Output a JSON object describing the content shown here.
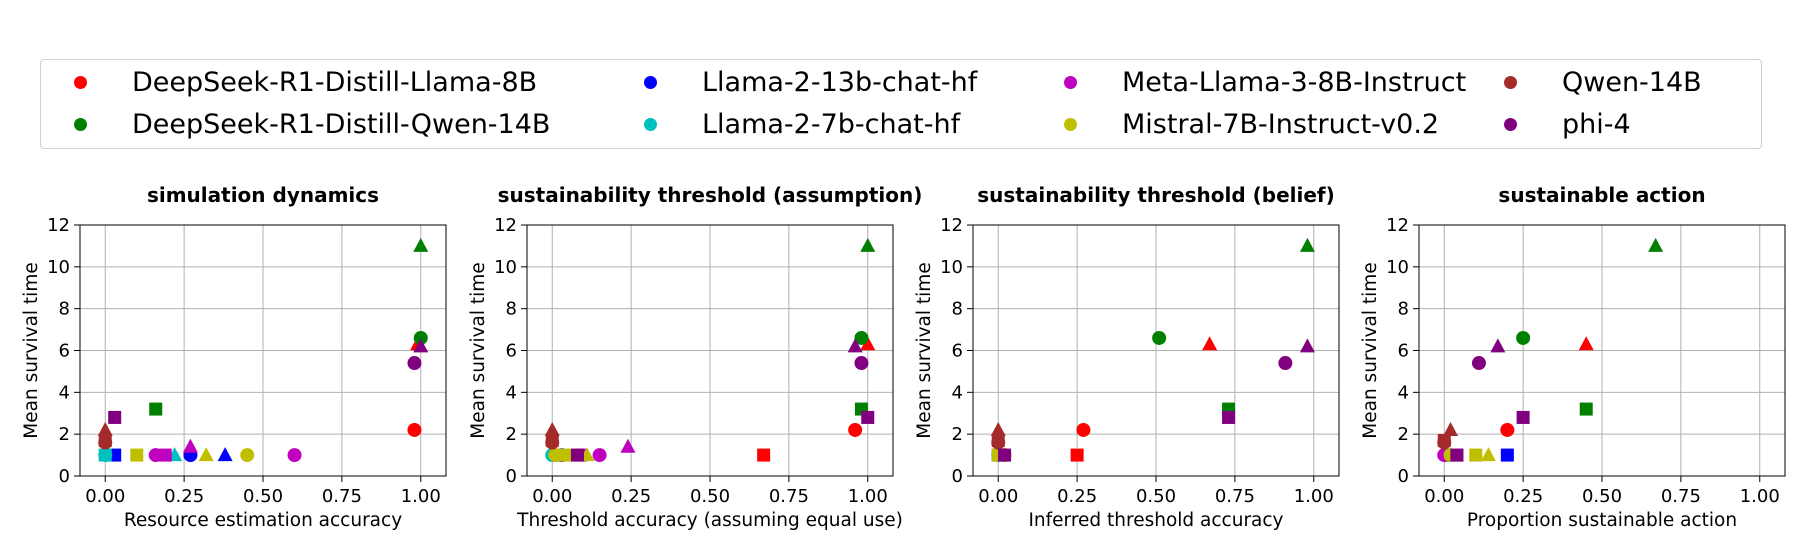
{
  "legend": {
    "placement": "top",
    "entries": [
      {
        "name": "DeepSeek-R1-Distill-Llama-8B",
        "color": "#ff0000"
      },
      {
        "name": "DeepSeek-R1-Distill-Qwen-14B",
        "color": "#008000"
      },
      {
        "name": "Llama-2-13b-chat-hf",
        "color": "#0000ff"
      },
      {
        "name": "Llama-2-7b-chat-hf",
        "color": "#00bfbf"
      },
      {
        "name": "Meta-Llama-3-8B-Instruct",
        "color": "#bf00bf"
      },
      {
        "name": "Mistral-7B-Instruct-v0.2",
        "color": "#bfbf00"
      },
      {
        "name": "Qwen-14B",
        "color": "#a52a2a"
      },
      {
        "name": "phi-4",
        "color": "#800080"
      }
    ]
  },
  "chart_data": [
    {
      "type": "scatter",
      "title": "simulation dynamics",
      "xlabel": "Resource estimation accuracy",
      "ylabel": "Mean survival time",
      "xlim": [
        -0.08,
        1.08
      ],
      "ylim": [
        0,
        12
      ],
      "xticks": [
        "0.00",
        "0.25",
        "0.50",
        "0.75",
        "1.00"
      ],
      "yticks": [
        "0",
        "2",
        "4",
        "6",
        "8",
        "10",
        "12"
      ],
      "grid": true,
      "points": [
        {
          "model": "DeepSeek-R1-Distill-Llama-8B",
          "marker": "circle",
          "x": 0.98,
          "y": 2.2
        },
        {
          "model": "DeepSeek-R1-Distill-Llama-8B",
          "marker": "triangle",
          "x": 0.99,
          "y": 6.3
        },
        {
          "model": "DeepSeek-R1-Distill-Qwen-14B",
          "marker": "square",
          "x": 0.16,
          "y": 3.2
        },
        {
          "model": "DeepSeek-R1-Distill-Qwen-14B",
          "marker": "triangle",
          "x": 1.0,
          "y": 11.0
        },
        {
          "model": "DeepSeek-R1-Distill-Qwen-14B",
          "marker": "circle",
          "x": 1.0,
          "y": 6.6
        },
        {
          "model": "Llama-2-13b-chat-hf",
          "marker": "square",
          "x": 0.03,
          "y": 1.0
        },
        {
          "model": "Llama-2-13b-chat-hf",
          "marker": "circle",
          "x": 0.27,
          "y": 1.0
        },
        {
          "model": "Llama-2-13b-chat-hf",
          "marker": "triangle",
          "x": 0.38,
          "y": 1.0
        },
        {
          "model": "Llama-2-7b-chat-hf",
          "marker": "circle",
          "x": 0.0,
          "y": 1.0
        },
        {
          "model": "Llama-2-7b-chat-hf",
          "marker": "square",
          "x": 0.0,
          "y": 1.0
        },
        {
          "model": "Llama-2-7b-chat-hf",
          "marker": "triangle",
          "x": 0.22,
          "y": 1.0
        },
        {
          "model": "Meta-Llama-3-8B-Instruct",
          "marker": "circle",
          "x": 0.16,
          "y": 1.0
        },
        {
          "model": "Meta-Llama-3-8B-Instruct",
          "marker": "square",
          "x": 0.19,
          "y": 1.0
        },
        {
          "model": "Meta-Llama-3-8B-Instruct",
          "marker": "triangle",
          "x": 0.27,
          "y": 1.4
        },
        {
          "model": "Meta-Llama-3-8B-Instruct",
          "marker": "circle",
          "x": 0.6,
          "y": 1.0
        },
        {
          "model": "Mistral-7B-Instruct-v0.2",
          "marker": "square",
          "x": 0.1,
          "y": 1.0
        },
        {
          "model": "Mistral-7B-Instruct-v0.2",
          "marker": "triangle",
          "x": 0.32,
          "y": 1.0
        },
        {
          "model": "Mistral-7B-Instruct-v0.2",
          "marker": "circle",
          "x": 0.45,
          "y": 1.0
        },
        {
          "model": "Qwen-14B",
          "marker": "circle",
          "x": 0.0,
          "y": 1.6
        },
        {
          "model": "Qwen-14B",
          "marker": "square",
          "x": 0.0,
          "y": 1.7
        },
        {
          "model": "Qwen-14B",
          "marker": "triangle",
          "x": 0.0,
          "y": 2.2
        },
        {
          "model": "phi-4",
          "marker": "square",
          "x": 0.03,
          "y": 2.8
        },
        {
          "model": "phi-4",
          "marker": "circle",
          "x": 0.98,
          "y": 5.4
        },
        {
          "model": "phi-4",
          "marker": "triangle",
          "x": 1.0,
          "y": 6.2
        }
      ]
    },
    {
      "type": "scatter",
      "title": "sustainability threshold (assumption)",
      "xlabel": "Threshold accuracy (assuming equal use)",
      "ylabel": "Mean survival time",
      "xlim": [
        -0.08,
        1.08
      ],
      "ylim": [
        0,
        12
      ],
      "xticks": [
        "0.00",
        "0.25",
        "0.50",
        "0.75",
        "1.00"
      ],
      "yticks": [
        "0",
        "2",
        "4",
        "6",
        "8",
        "10",
        "12"
      ],
      "grid": true,
      "points": [
        {
          "model": "DeepSeek-R1-Distill-Llama-8B",
          "marker": "square",
          "x": 0.67,
          "y": 1.0
        },
        {
          "model": "DeepSeek-R1-Distill-Llama-8B",
          "marker": "circle",
          "x": 0.96,
          "y": 2.2
        },
        {
          "model": "DeepSeek-R1-Distill-Llama-8B",
          "marker": "triangle",
          "x": 1.0,
          "y": 6.3
        },
        {
          "model": "DeepSeek-R1-Distill-Qwen-14B",
          "marker": "triangle",
          "x": 1.0,
          "y": 11.0
        },
        {
          "model": "DeepSeek-R1-Distill-Qwen-14B",
          "marker": "circle",
          "x": 0.98,
          "y": 6.6
        },
        {
          "model": "DeepSeek-R1-Distill-Qwen-14B",
          "marker": "square",
          "x": 0.98,
          "y": 3.2
        },
        {
          "model": "Llama-2-13b-chat-hf",
          "marker": "square",
          "x": 0.02,
          "y": 1.0
        },
        {
          "model": "Llama-2-13b-chat-hf",
          "marker": "circle",
          "x": 0.03,
          "y": 1.0
        },
        {
          "model": "Llama-2-7b-chat-hf",
          "marker": "circle",
          "x": 0.0,
          "y": 1.0
        },
        {
          "model": "Llama-2-7b-chat-hf",
          "marker": "square",
          "x": 0.01,
          "y": 1.0
        },
        {
          "model": "Meta-Llama-3-8B-Instruct",
          "marker": "square",
          "x": 0.09,
          "y": 1.0
        },
        {
          "model": "Meta-Llama-3-8B-Instruct",
          "marker": "circle",
          "x": 0.15,
          "y": 1.0
        },
        {
          "model": "Meta-Llama-3-8B-Instruct",
          "marker": "triangle",
          "x": 0.24,
          "y": 1.4
        },
        {
          "model": "Mistral-7B-Instruct-v0.2",
          "marker": "circle",
          "x": 0.01,
          "y": 1.0
        },
        {
          "model": "Mistral-7B-Instruct-v0.2",
          "marker": "square",
          "x": 0.04,
          "y": 1.0
        },
        {
          "model": "Mistral-7B-Instruct-v0.2",
          "marker": "triangle",
          "x": 0.11,
          "y": 1.0
        },
        {
          "model": "Qwen-14B",
          "marker": "circle",
          "x": 0.0,
          "y": 1.6
        },
        {
          "model": "Qwen-14B",
          "marker": "square",
          "x": 0.0,
          "y": 1.7
        },
        {
          "model": "Qwen-14B",
          "marker": "triangle",
          "x": 0.0,
          "y": 2.2
        },
        {
          "model": "phi-4",
          "marker": "square",
          "x": 0.08,
          "y": 1.0
        },
        {
          "model": "phi-4",
          "marker": "square",
          "x": 1.0,
          "y": 2.8
        },
        {
          "model": "phi-4",
          "marker": "circle",
          "x": 0.98,
          "y": 5.4
        },
        {
          "model": "phi-4",
          "marker": "triangle",
          "x": 0.96,
          "y": 6.2
        }
      ]
    },
    {
      "type": "scatter",
      "title": "sustainability threshold (belief)",
      "xlabel": "Inferred threshold accuracy",
      "ylabel": "Mean survival time",
      "xlim": [
        -0.08,
        1.08
      ],
      "ylim": [
        0,
        12
      ],
      "xticks": [
        "0.00",
        "0.25",
        "0.50",
        "0.75",
        "1.00"
      ],
      "yticks": [
        "0",
        "2",
        "4",
        "6",
        "8",
        "10",
        "12"
      ],
      "grid": true,
      "points": [
        {
          "model": "DeepSeek-R1-Distill-Llama-8B",
          "marker": "square",
          "x": 0.25,
          "y": 1.0
        },
        {
          "model": "DeepSeek-R1-Distill-Llama-8B",
          "marker": "circle",
          "x": 0.27,
          "y": 2.2
        },
        {
          "model": "DeepSeek-R1-Distill-Llama-8B",
          "marker": "triangle",
          "x": 0.67,
          "y": 6.3
        },
        {
          "model": "DeepSeek-R1-Distill-Qwen-14B",
          "marker": "circle",
          "x": 0.51,
          "y": 6.6
        },
        {
          "model": "DeepSeek-R1-Distill-Qwen-14B",
          "marker": "square",
          "x": 0.73,
          "y": 3.2
        },
        {
          "model": "DeepSeek-R1-Distill-Qwen-14B",
          "marker": "triangle",
          "x": 0.98,
          "y": 11.0
        },
        {
          "model": "Llama-2-13b-chat-hf",
          "marker": "square",
          "x": 0.0,
          "y": 1.0
        },
        {
          "model": "Llama-2-7b-chat-hf",
          "marker": "circle",
          "x": 0.0,
          "y": 1.0
        },
        {
          "model": "Meta-Llama-3-8B-Instruct",
          "marker": "circle",
          "x": 0.02,
          "y": 1.0
        },
        {
          "model": "Mistral-7B-Instruct-v0.2",
          "marker": "square",
          "x": 0.0,
          "y": 1.0
        },
        {
          "model": "Mistral-7B-Instruct-v0.2",
          "marker": "circle",
          "x": 0.02,
          "y": 1.0
        },
        {
          "model": "Qwen-14B",
          "marker": "circle",
          "x": 0.0,
          "y": 1.6
        },
        {
          "model": "Qwen-14B",
          "marker": "square",
          "x": 0.0,
          "y": 1.7
        },
        {
          "model": "Qwen-14B",
          "marker": "triangle",
          "x": 0.0,
          "y": 2.2
        },
        {
          "model": "phi-4",
          "marker": "square",
          "x": 0.02,
          "y": 1.0
        },
        {
          "model": "phi-4",
          "marker": "square",
          "x": 0.73,
          "y": 2.8
        },
        {
          "model": "phi-4",
          "marker": "circle",
          "x": 0.91,
          "y": 5.4
        },
        {
          "model": "phi-4",
          "marker": "triangle",
          "x": 0.98,
          "y": 6.2
        }
      ]
    },
    {
      "type": "scatter",
      "title": "sustainable action",
      "xlabel": "Proportion sustainable action",
      "ylabel": "Mean survival time",
      "xlim": [
        -0.08,
        1.08
      ],
      "ylim": [
        0,
        12
      ],
      "xticks": [
        "0.00",
        "0.25",
        "0.50",
        "0.75",
        "1.00"
      ],
      "yticks": [
        "0",
        "2",
        "4",
        "6",
        "8",
        "10",
        "12"
      ],
      "grid": true,
      "points": [
        {
          "model": "DeepSeek-R1-Distill-Llama-8B",
          "marker": "circle",
          "x": 0.2,
          "y": 2.2
        },
        {
          "model": "DeepSeek-R1-Distill-Llama-8B",
          "marker": "triangle",
          "x": 0.45,
          "y": 6.3
        },
        {
          "model": "DeepSeek-R1-Distill-Qwen-14B",
          "marker": "circle",
          "x": 0.25,
          "y": 6.6
        },
        {
          "model": "DeepSeek-R1-Distill-Qwen-14B",
          "marker": "square",
          "x": 0.45,
          "y": 3.2
        },
        {
          "model": "DeepSeek-R1-Distill-Qwen-14B",
          "marker": "triangle",
          "x": 0.67,
          "y": 11.0
        },
        {
          "model": "Llama-2-13b-chat-hf",
          "marker": "square",
          "x": 0.2,
          "y": 1.0
        },
        {
          "model": "Llama-2-7b-chat-hf",
          "marker": "circle",
          "x": 0.01,
          "y": 1.0
        },
        {
          "model": "Meta-Llama-3-8B-Instruct",
          "marker": "circle",
          "x": 0.0,
          "y": 1.0
        },
        {
          "model": "Meta-Llama-3-8B-Instruct",
          "marker": "square",
          "x": 0.04,
          "y": 1.0
        },
        {
          "model": "Mistral-7B-Instruct-v0.2",
          "marker": "circle",
          "x": 0.02,
          "y": 1.0
        },
        {
          "model": "Mistral-7B-Instruct-v0.2",
          "marker": "square",
          "x": 0.1,
          "y": 1.0
        },
        {
          "model": "Mistral-7B-Instruct-v0.2",
          "marker": "triangle",
          "x": 0.14,
          "y": 1.0
        },
        {
          "model": "Qwen-14B",
          "marker": "circle",
          "x": 0.0,
          "y": 1.6
        },
        {
          "model": "Qwen-14B",
          "marker": "square",
          "x": 0.0,
          "y": 1.7
        },
        {
          "model": "Qwen-14B",
          "marker": "triangle",
          "x": 0.02,
          "y": 2.2
        },
        {
          "model": "phi-4",
          "marker": "circle",
          "x": 0.11,
          "y": 5.4
        },
        {
          "model": "phi-4",
          "marker": "triangle",
          "x": 0.17,
          "y": 6.2
        },
        {
          "model": "phi-4",
          "marker": "square",
          "x": 0.25,
          "y": 2.8
        },
        {
          "model": "phi-4",
          "marker": "square",
          "x": 0.04,
          "y": 1.0
        }
      ]
    }
  ]
}
